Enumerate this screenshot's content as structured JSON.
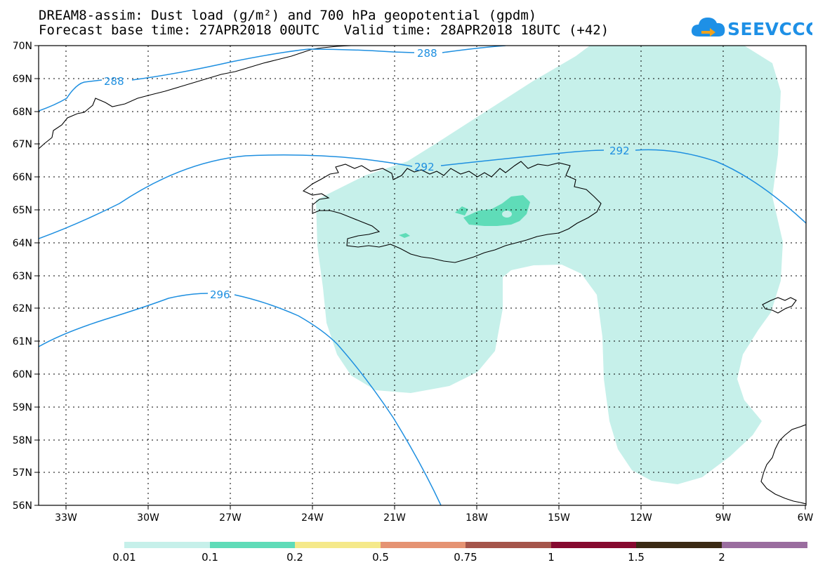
{
  "title": {
    "line1": "DREAM8-assim: Dust load (g/m²) and 700 hPa geopotential (gpdm)",
    "line2": "Forecast base time: 27APR2018 00UTC   Valid time: 28APR2018 18UTC (+42)"
  },
  "logo": {
    "text": "SEEVCCC",
    "icon": "cloud-arrow-icon",
    "color": "#1e90e6"
  },
  "axes": {
    "lat_labels": [
      "70N",
      "69N",
      "68N",
      "67N",
      "66N",
      "65N",
      "64N",
      "63N",
      "62N",
      "61N",
      "60N",
      "59N",
      "58N",
      "57N",
      "56N"
    ],
    "lon_labels": [
      "33W",
      "30W",
      "27W",
      "24W",
      "21W",
      "18W",
      "15W",
      "12W",
      "9W",
      "6W"
    ]
  },
  "contours": {
    "color": "#1e8fe0",
    "labels": [
      "288",
      "288",
      "292",
      "292",
      "296"
    ]
  },
  "colorbar": {
    "labels": [
      "0.01",
      "0.1",
      "0.2",
      "0.5",
      "0.75",
      "1",
      "1.5",
      "2"
    ],
    "colors": [
      "#c6f0ea",
      "#5fdcb8",
      "#f5e98a",
      "#e59373",
      "#a5554b",
      "#86092f",
      "#3a2a14",
      "#9a6d9f"
    ]
  }
}
